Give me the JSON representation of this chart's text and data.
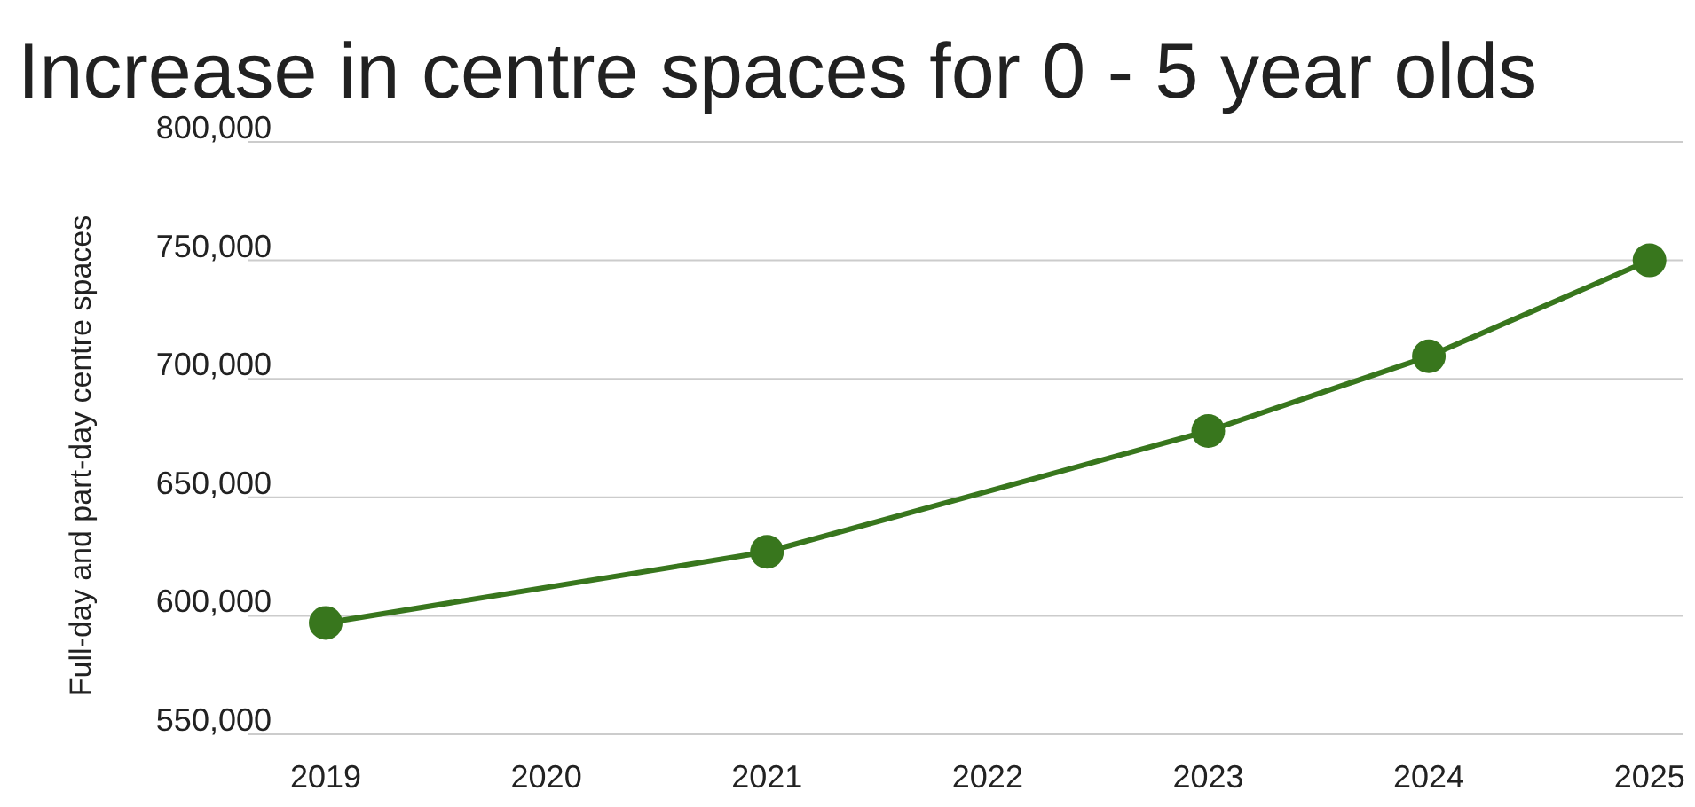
{
  "chart_data": {
    "type": "line",
    "title": "Increase in centre spaces for 0 - 5 year olds",
    "ylabel": "Full-day and part-day centre spaces",
    "x": [
      2019,
      2021,
      2023,
      2024,
      2025
    ],
    "series": [
      {
        "color": "#38761d",
        "values": [
          597000,
          627000,
          678000,
          709500,
          750000
        ]
      }
    ],
    "xlim": [
      2018.65,
      2025.15
    ],
    "xticks": [
      2019,
      2020,
      2021,
      2022,
      2023,
      2024,
      2025
    ],
    "ylim": [
      550000,
      800000
    ],
    "yticks": [
      {
        "value": 550000,
        "label": "550,000"
      },
      {
        "value": 600000,
        "label": "600,000"
      },
      {
        "value": 650000,
        "label": "650,000"
      },
      {
        "value": 700000,
        "label": "700,000"
      },
      {
        "value": 750000,
        "label": "750,000"
      },
      {
        "value": 800000,
        "label": "800,000"
      }
    ],
    "grid": "y",
    "marker": "circle",
    "line_style": "solid"
  }
}
